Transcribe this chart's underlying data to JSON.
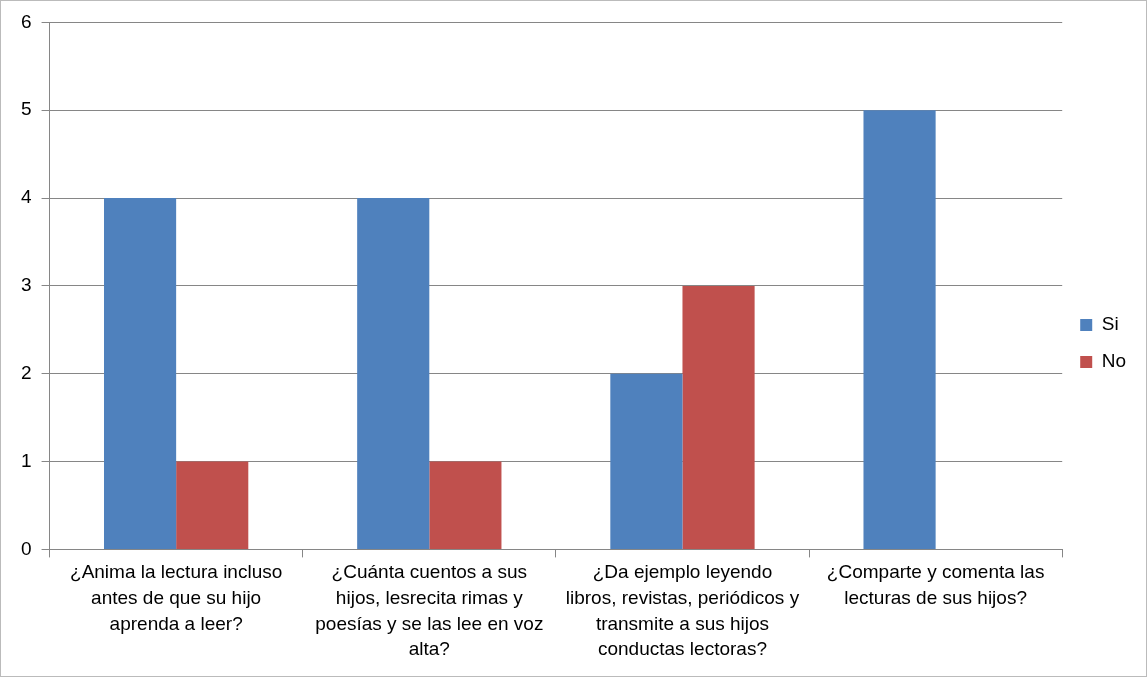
{
  "chart_data": {
    "type": "bar",
    "categories": [
      "¿Anima la lectura incluso antes de que su hijo aprenda a leer?",
      "¿Cuánta cuentos a sus hijos, lesrecita rimas y poesías y se las lee en voz alta?",
      "¿Da ejemplo leyendo libros, revistas, periódicos y transmite a sus hijos conductas lectoras?",
      "¿Comparte y comenta las lecturas de sus hijos?"
    ],
    "series": [
      {
        "name": "Si",
        "color": "#4f81bd",
        "values": [
          4,
          4,
          2,
          5
        ]
      },
      {
        "name": "No",
        "color": "#c0504d",
        "values": [
          1,
          1,
          3,
          0
        ]
      }
    ],
    "ylim": [
      0,
      6
    ],
    "yticks": [
      0,
      1,
      2,
      3,
      4,
      5,
      6
    ],
    "grid": "y",
    "legend": "right"
  }
}
